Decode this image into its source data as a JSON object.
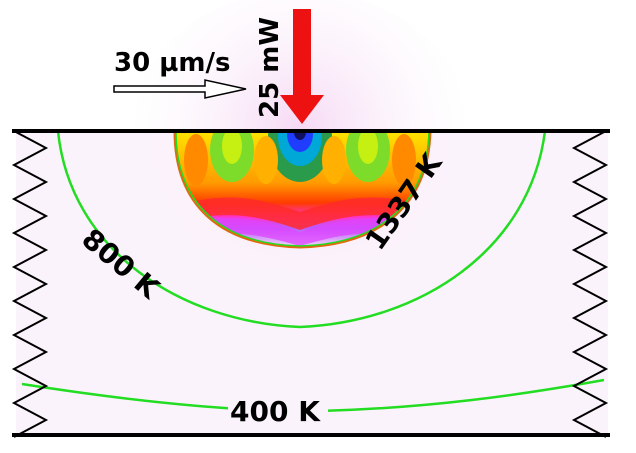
{
  "scan_speed_label": "30 µm/s",
  "laser_power_label": "25 mW",
  "isotherms": {
    "melt": "1337 K",
    "mid": "800 K",
    "low": "400 K"
  },
  "colors": {
    "laser_arrow": "#ee1111",
    "isotherm_line": "#22dd22",
    "melt_outline": "#e06a10",
    "substrate_fill": "#fbf3fb",
    "boundary": "#000000"
  },
  "icons": {
    "laser": "red-down-arrow",
    "scan_direction": "hollow-right-arrow",
    "boundary": "zigzag-break"
  }
}
